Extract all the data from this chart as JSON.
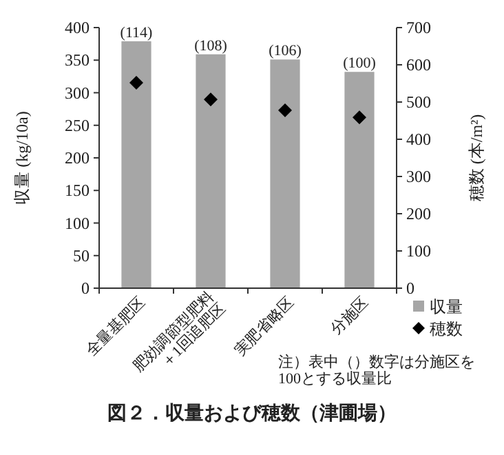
{
  "chart_data": {
    "type": "bar",
    "title": "図２．収量および穂数（津圃場）",
    "ylabel": "収量 (kg/10a)",
    "y2label": "穂数 (本/m²)",
    "categories": [
      "全量基肥区",
      "肥効調節型肥料\n＋1回追肥区",
      "実肥省略区",
      "分施区"
    ],
    "series": [
      {
        "name": "収量",
        "color": "#a6a6a6",
        "values": [
          379,
          359,
          351,
          332
        ]
      },
      {
        "name": "穂数",
        "type": "scatter",
        "axis": "y2",
        "marker": "diamond",
        "color": "#000000",
        "values": [
          552,
          507,
          478,
          459
        ]
      }
    ],
    "ylim": [
      0,
      400
    ],
    "yticks": [
      0,
      50,
      100,
      150,
      200,
      250,
      300,
      350,
      400
    ],
    "y2lim": [
      0,
      700
    ],
    "y2ticks": [
      0,
      100,
      200,
      300,
      400,
      500,
      600,
      700
    ],
    "legend": "bottom right",
    "grid": false,
    "annotations": [
      {
        "text": "(114)",
        "x": "全量基肥区",
        "y": 379
      },
      {
        "text": "(108)",
        "x": "肥効調節型肥料\n＋1回追肥区",
        "y": 359
      },
      {
        "text": "(106)",
        "x": "実肥省略区",
        "y": 351
      },
      {
        "text": "(100)",
        "x": "分施区",
        "y": 332
      },
      "注）表中（）数字は分施区を\n100とする収量比"
    ]
  }
}
